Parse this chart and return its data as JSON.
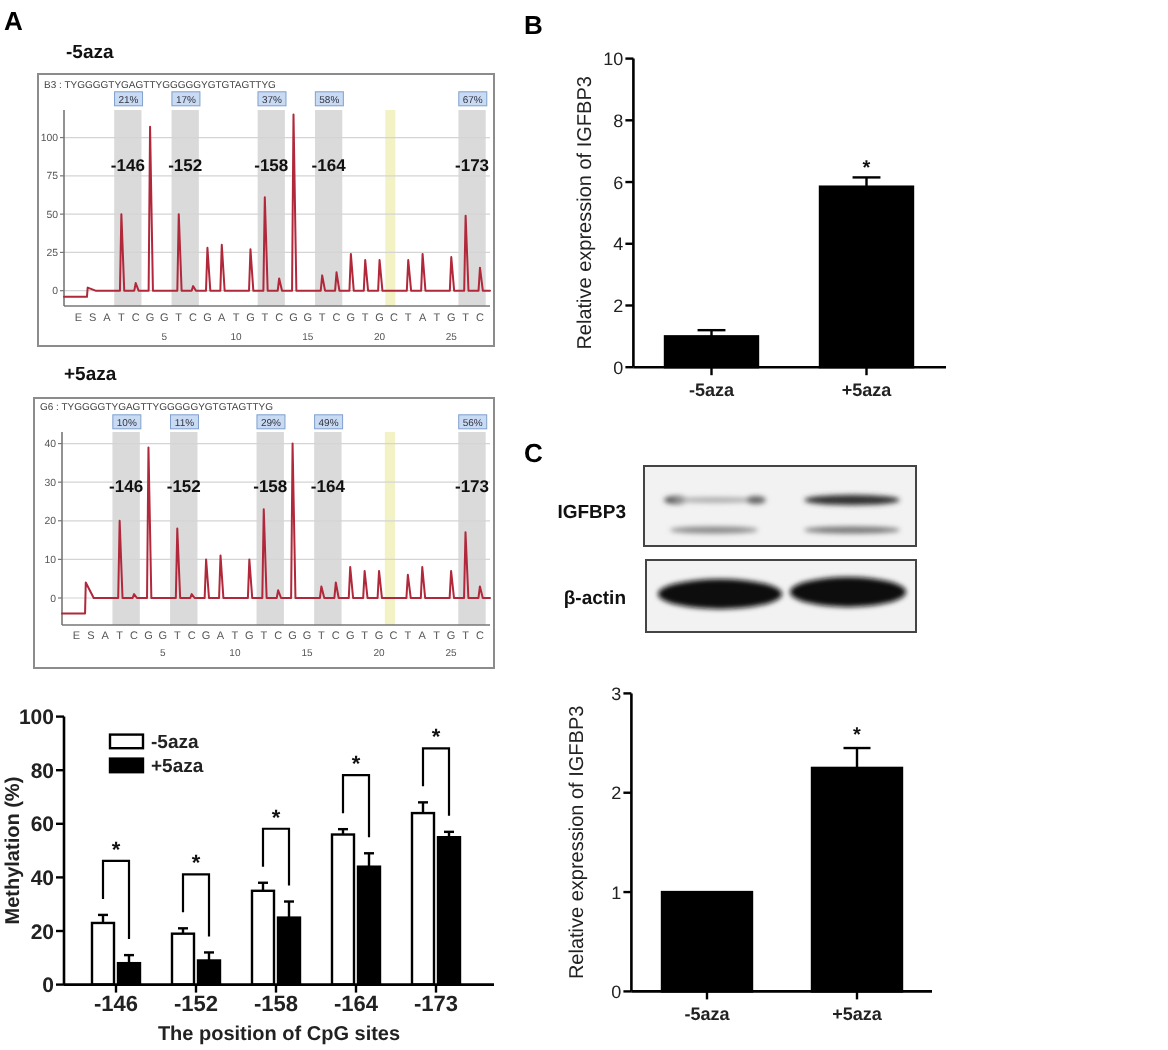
{
  "chart_data": [
    {
      "type": "line",
      "title": "-5aza",
      "annotations": [
        "A",
        "B3 : TYGGGGTYGAGTTYGGGGGYGTGTAGTTYG",
        "E",
        "S",
        "A",
        "T",
        "C",
        "G",
        "G",
        "T",
        "C",
        "G",
        "A",
        "T",
        "G",
        "T",
        "C",
        "G",
        "G",
        "T",
        "C",
        "G",
        "T",
        "G",
        "C",
        "T",
        "A",
        "T",
        "G",
        "T",
        "C",
        {
          "text": "21%",
          "x": 2.5
        },
        {
          "text": "17%",
          "x": 6.5
        },
        {
          "text": "37%",
          "x": 12.5
        },
        {
          "text": "58%",
          "x": 16.5
        },
        {
          "text": "67%",
          "x": 26.5
        }
      ],
      "series": [
        {
          "color": "#b0283a",
          "x": [
            -2,
            -0.4,
            -0.35,
            0.2,
            1.9,
            2,
            2.2,
            2.9,
            3,
            3.2,
            3.9,
            4,
            4.2,
            5.9,
            6,
            6.2,
            6.9,
            7,
            7.2,
            7.9,
            8,
            8.2,
            8.9,
            9,
            9.2,
            10.9,
            11,
            11.2,
            11.9,
            12,
            12.2,
            12.9,
            13,
            13.2,
            13.9,
            14,
            14.2,
            15.9,
            16,
            16.2,
            16.9,
            17,
            17.2,
            17.9,
            18,
            18.2,
            18.9,
            19,
            19.2,
            19.9,
            20,
            20.2,
            21.9,
            22,
            22.2,
            22.9,
            23,
            23.2,
            24.9,
            25,
            25.2,
            25.9,
            26,
            26.2,
            26.9,
            27,
            27.2,
            27.7
          ],
          "values": [
            -4,
            -4,
            2,
            0,
            0,
            50,
            0,
            0,
            5,
            0,
            0,
            107,
            0,
            0,
            50,
            0,
            0,
            3,
            0,
            0,
            28,
            0,
            0,
            30,
            0,
            0,
            27,
            0,
            0,
            61,
            0,
            0,
            8,
            0,
            0,
            115,
            0,
            0,
            10,
            0,
            0,
            12,
            0,
            0,
            24,
            0,
            0,
            20,
            0,
            0,
            20,
            0,
            0,
            20,
            0,
            0,
            24,
            0,
            0,
            22,
            0,
            0,
            49,
            0,
            0,
            15,
            0,
            0
          ]
        }
      ],
      "xlim": [
        -2,
        27.7
      ],
      "xticks": [
        5,
        10,
        15,
        20,
        25
      ],
      "ylim": [
        -10,
        118
      ],
      "yticks": [
        0,
        25,
        50,
        75,
        100
      ],
      "grid": "y",
      "bands": [
        {
          "axis": "x",
          "from": 1.5,
          "to": 3.4,
          "label": "-146",
          "color": "#dadada"
        },
        {
          "axis": "x",
          "from": 5.5,
          "to": 7.4,
          "label": "-152",
          "color": "#dadada"
        },
        {
          "axis": "x",
          "from": 11.5,
          "to": 13.4,
          "label": "-158",
          "color": "#dadada"
        },
        {
          "axis": "x",
          "from": 15.5,
          "to": 17.4,
          "label": "-164",
          "color": "#dadada"
        },
        {
          "axis": "x",
          "from": 20.4,
          "to": 21.1,
          "color": "#f2f2c4"
        },
        {
          "axis": "x",
          "from": 25.5,
          "to": 27.4,
          "label": "-173",
          "color": "#dadada"
        }
      ]
    },
    {
      "type": "line",
      "title": "+5aza",
      "annotations": [
        "G6 : TYGGGGTYGAGTTYGGGGGYGTGTAGTTYG",
        "E",
        "S",
        "A",
        "T",
        "C",
        "G",
        "G",
        "T",
        "C",
        "G",
        "A",
        "T",
        "G",
        "T",
        "C",
        "G",
        "G",
        "T",
        "C",
        "G",
        "T",
        "G",
        "C",
        "T",
        "A",
        "T",
        "G",
        "T",
        "C",
        {
          "text": "10%",
          "x": 2.5
        },
        {
          "text": "11%",
          "x": 6.5
        },
        {
          "text": "29%",
          "x": 12.5
        },
        {
          "text": "49%",
          "x": 16.5
        },
        {
          "text": "56%",
          "x": 26.5
        }
      ],
      "series": [
        {
          "color": "#b0283a",
          "x": [
            -2,
            -0.4,
            -0.35,
            0.2,
            1.9,
            2,
            2.2,
            2.9,
            3,
            3.2,
            3.9,
            4,
            4.2,
            5.9,
            6,
            6.2,
            6.9,
            7,
            7.2,
            7.9,
            8,
            8.2,
            8.9,
            9,
            9.2,
            10.9,
            11,
            11.2,
            11.9,
            12,
            12.2,
            12.9,
            13,
            13.2,
            13.9,
            14,
            14.2,
            15.9,
            16,
            16.2,
            16.9,
            17,
            17.2,
            17.9,
            18,
            18.2,
            18.9,
            19,
            19.2,
            19.9,
            20,
            20.2,
            21.9,
            22,
            22.2,
            22.9,
            23,
            23.2,
            24.9,
            25,
            25.2,
            25.9,
            26,
            26.2,
            26.9,
            27,
            27.2,
            27.7
          ],
          "values": [
            -4,
            -4,
            4,
            0,
            0,
            20,
            0,
            0,
            1,
            0,
            0,
            39,
            0,
            0,
            18,
            0,
            0,
            1,
            0,
            0,
            10,
            0,
            0,
            11,
            0,
            0,
            10,
            0,
            0,
            23,
            0,
            0,
            2,
            0,
            0,
            40,
            0,
            0,
            3,
            0,
            0,
            4,
            0,
            0,
            8,
            0,
            0,
            7,
            0,
            0,
            7,
            0,
            0,
            6,
            0,
            0,
            8,
            0,
            0,
            7,
            0,
            0,
            17,
            0,
            0,
            3,
            0,
            0
          ]
        }
      ],
      "xlim": [
        -2,
        27.7
      ],
      "xticks": [
        5,
        10,
        15,
        20,
        25
      ],
      "ylim": [
        -7,
        43
      ],
      "yticks": [
        0,
        10,
        20,
        30,
        40
      ],
      "grid": "y",
      "bands": [
        {
          "axis": "x",
          "from": 1.5,
          "to": 3.4,
          "label": "-146",
          "color": "#dadada"
        },
        {
          "axis": "x",
          "from": 5.5,
          "to": 7.4,
          "label": "-152",
          "color": "#dadada"
        },
        {
          "axis": "x",
          "from": 11.5,
          "to": 13.4,
          "label": "-158",
          "color": "#dadada"
        },
        {
          "axis": "x",
          "from": 15.5,
          "to": 17.4,
          "label": "-164",
          "color": "#dadada"
        },
        {
          "axis": "x",
          "from": 20.4,
          "to": 21.1,
          "color": "#f2f2c4"
        },
        {
          "axis": "x",
          "from": 25.5,
          "to": 27.4,
          "label": "-173",
          "color": "#dadada"
        }
      ]
    },
    {
      "type": "bar",
      "categories": [
        "-146",
        "-152",
        "-158",
        "-164",
        "-173"
      ],
      "xlabel": "The position of CpG sites",
      "ylabel": "Methylation (%)",
      "series": [
        {
          "name": "-5aza",
          "color": "#ffffff",
          "values": [
            23,
            19,
            35,
            56,
            64
          ],
          "errors": [
            [
              23,
              26
            ],
            [
              19,
              21
            ],
            [
              35,
              38
            ],
            [
              56,
              58
            ],
            [
              64,
              68
            ]
          ]
        },
        {
          "name": "+5aza",
          "color": "#000000",
          "values": [
            8,
            9,
            25,
            44,
            55
          ],
          "errors": [
            [
              8,
              11
            ],
            [
              9,
              12
            ],
            [
              25,
              31
            ],
            [
              44,
              49
            ],
            [
              55,
              57
            ]
          ]
        }
      ],
      "ylim": [
        0,
        100
      ],
      "yticks": [
        0,
        20,
        40,
        60,
        80,
        100
      ],
      "legend": "top left",
      "annotations": [
        "*",
        "*",
        "*",
        "*",
        "*"
      ]
    },
    {
      "type": "bar",
      "categories": [
        "-5aza",
        "+5aza"
      ],
      "values": [
        1,
        5.85
      ],
      "color": "#000000",
      "errors": [
        [
          1,
          1.2
        ],
        [
          5.85,
          6.15
        ]
      ],
      "ylabel": "Relative expression of IGFBP3",
      "ylim": [
        0,
        10
      ],
      "yticks": [
        0,
        2,
        4,
        6,
        8,
        10
      ],
      "annotations": [
        "B",
        "*"
      ]
    },
    {
      "type": "other",
      "annotations": [
        "C",
        "IGFBP3",
        "β-actin"
      ]
    },
    {
      "type": "bar",
      "categories": [
        "-5aza",
        "+5aza"
      ],
      "values": [
        1,
        2.25
      ],
      "color": "#000000",
      "errors": [
        null,
        [
          2.25,
          2.45
        ]
      ],
      "ylabel": "Relative expression of IGFBP3",
      "ylim": [
        0,
        3
      ],
      "yticks": [
        0,
        1,
        2,
        3
      ],
      "annotations": [
        "*"
      ]
    }
  ]
}
